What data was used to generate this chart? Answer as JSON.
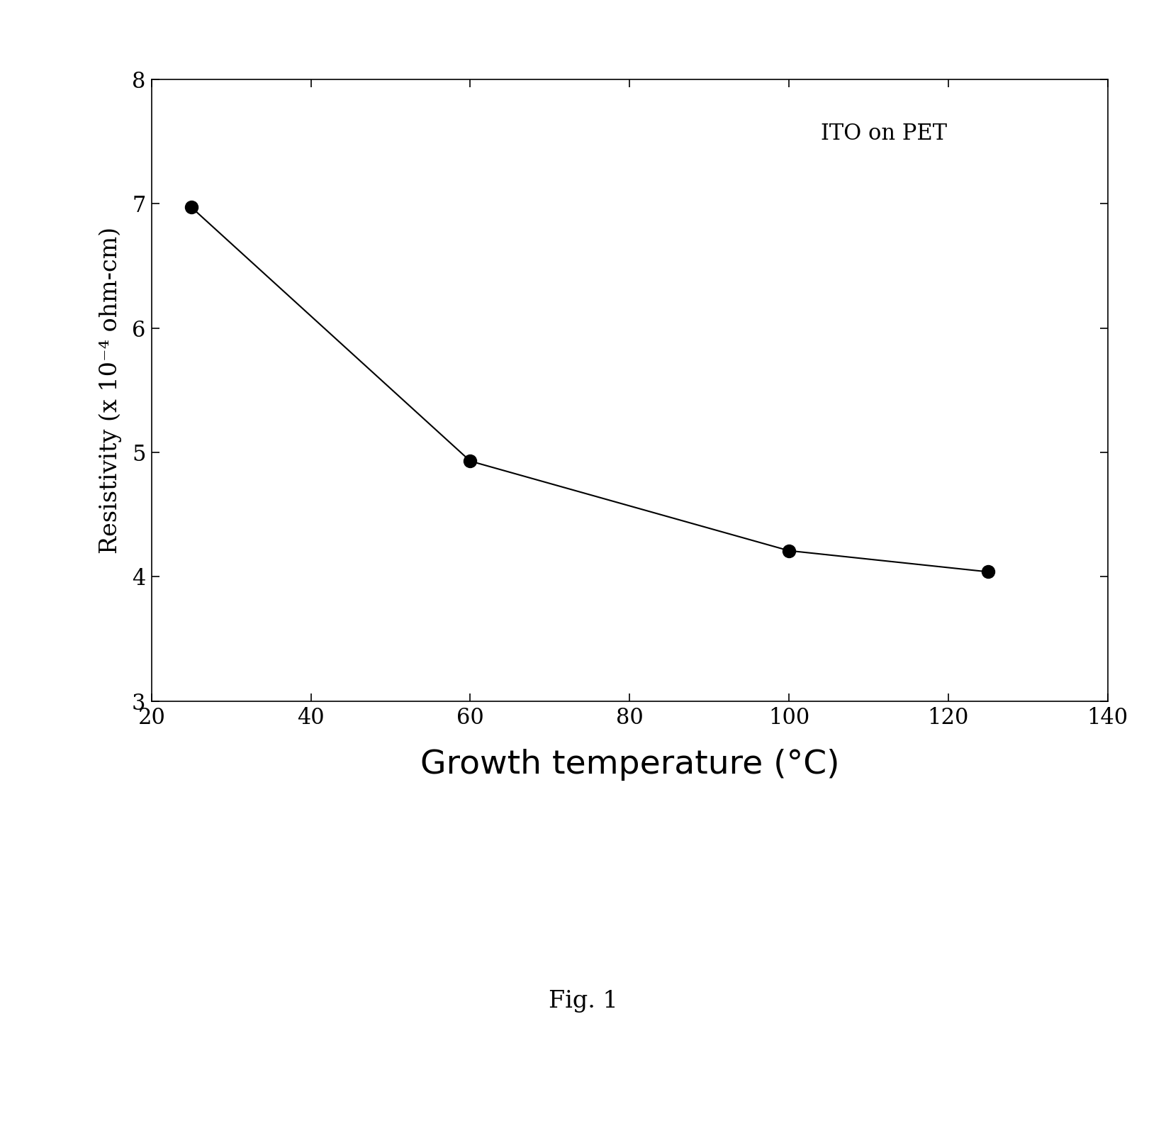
{
  "x": [
    25,
    60,
    100,
    125
  ],
  "y": [
    6.97,
    4.93,
    4.21,
    4.04
  ],
  "xlim": [
    20,
    140
  ],
  "ylim": [
    3,
    8
  ],
  "xticks": [
    20,
    40,
    60,
    80,
    100,
    120,
    140
  ],
  "yticks": [
    3,
    4,
    5,
    6,
    7,
    8
  ],
  "xlabel": "Growth temperature (°C)",
  "ylabel": "Resistivity (x 10⁻⁴ ohm-cm)",
  "annotation": "ITO on PET",
  "caption": "Fig. 1",
  "line_color": "#000000",
  "marker_color": "#000000",
  "background_color": "#ffffff",
  "marker_size": 13,
  "line_width": 1.5,
  "xlabel_fontsize": 34,
  "ylabel_fontsize": 24,
  "tick_fontsize": 22,
  "annotation_fontsize": 22,
  "caption_fontsize": 24
}
